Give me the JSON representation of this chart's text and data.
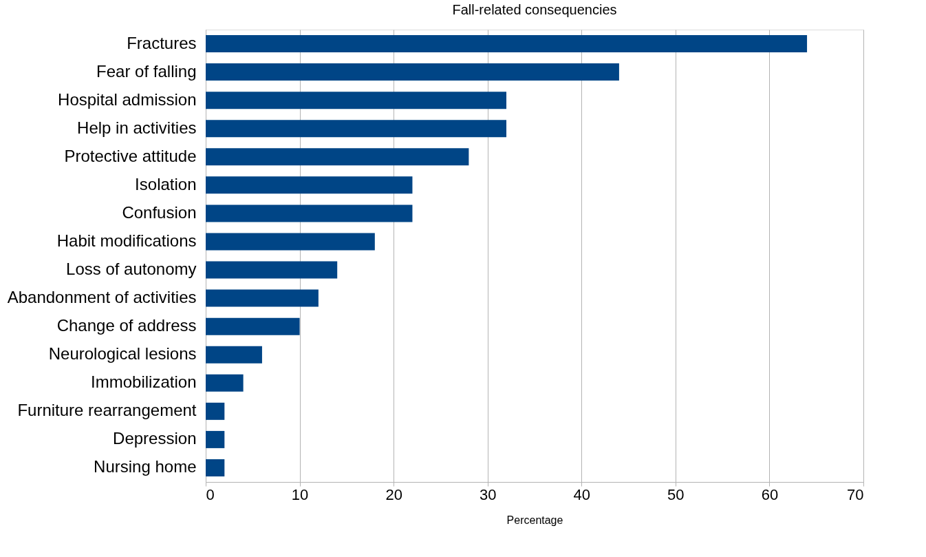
{
  "chart_data": {
    "type": "bar",
    "orientation": "horizontal",
    "title": "Fall-related consequencies",
    "xlabel": "Percentage",
    "categories": [
      "Fractures",
      "Fear of falling",
      "Hospital admission",
      "Help in activities",
      "Protective attitude",
      "Isolation",
      "Confusion",
      "Habit modifications",
      "Loss of autonomy",
      "Abandonment of activities",
      "Change of address",
      "Neurological lesions",
      "Immobilization",
      "Furniture rearrangement",
      "Depression",
      "Nursing home"
    ],
    "values": [
      64,
      44,
      32,
      32,
      28,
      22,
      22,
      18,
      14,
      12,
      10,
      6,
      4,
      2,
      2,
      2
    ],
    "color": "#004586",
    "xlim": [
      0,
      70
    ],
    "xticks": [
      0,
      10,
      20,
      30,
      40,
      50,
      60,
      70
    ],
    "grid": "x"
  }
}
